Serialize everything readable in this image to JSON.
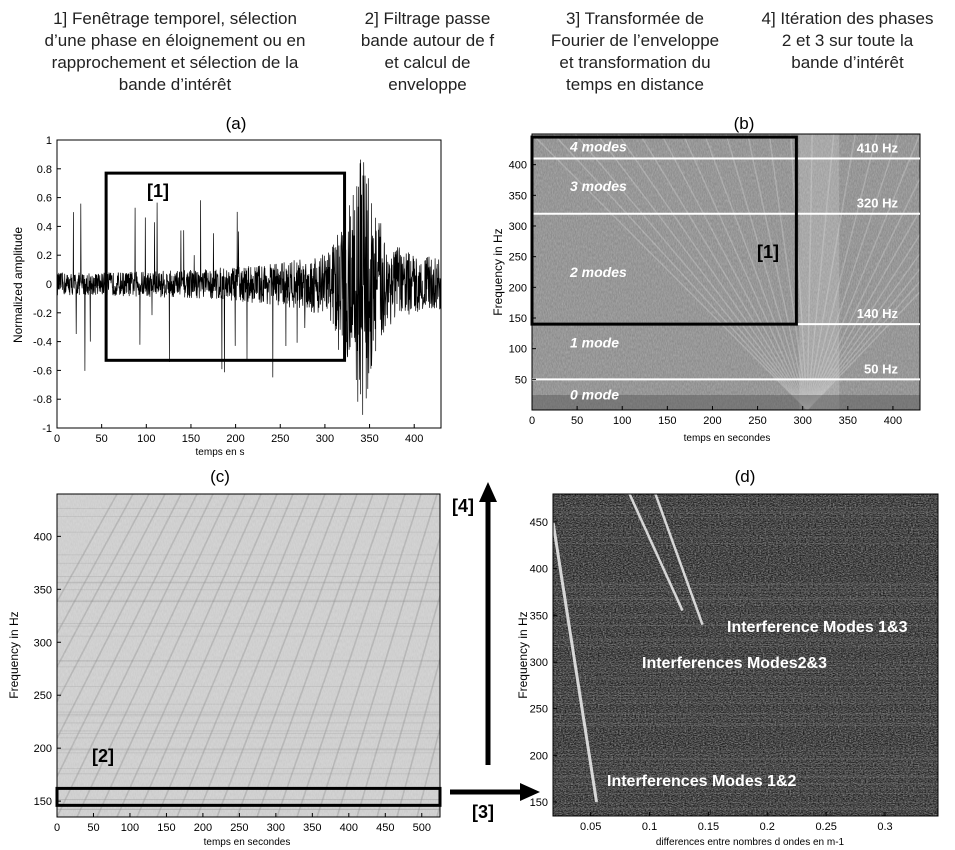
{
  "steps": [
    {
      "lines": [
        "1] Fenêtrage temporel, sélection",
        "d’une phase en éloignement ou en",
        "rapprochement et sélection de la",
        "bande d’intérêt"
      ]
    },
    {
      "lines": [
        "2] Filtrage passe",
        "bande autour de f",
        "et calcul de",
        "enveloppe"
      ]
    },
    {
      "lines": [
        "3] Transformée de",
        "Fourier de l’enveloppe",
        "et transformation du",
        "temps en distance"
      ]
    },
    {
      "lines": [
        "4] Itération des phases",
        "2 et 3 sur toute la",
        "bande d’intérêt"
      ]
    }
  ],
  "panel_labels": [
    "(a)",
    "(b)",
    "(c)",
    "(d)"
  ],
  "annotations": {
    "box1_a": "[1]",
    "box1_b": "[1]",
    "box2": "[2]",
    "arrow3": "[3]",
    "arrow4": "[4]"
  },
  "chart_data": [
    {
      "id": "a",
      "type": "line",
      "xlabel": "temps en s",
      "ylabel": "Normalized amplitude",
      "xlim": [
        0,
        430
      ],
      "ylim": [
        -1,
        1
      ],
      "xticks": [
        0,
        50,
        100,
        150,
        200,
        250,
        300,
        350,
        400
      ],
      "yticks": [
        -1,
        -0.8,
        -0.6,
        -0.4,
        -0.2,
        0,
        0.2,
        0.4,
        0.6,
        0.8,
        1
      ],
      "series": [
        {
          "envelope": [
            [
              0,
              0.08
            ],
            [
              50,
              0.08
            ],
            [
              100,
              0.09
            ],
            [
              150,
              0.1
            ],
            [
              200,
              0.12
            ],
            [
              250,
              0.15
            ],
            [
              300,
              0.22
            ],
            [
              320,
              0.4
            ],
            [
              335,
              0.8
            ],
            [
              345,
              0.95
            ],
            [
              355,
              0.55
            ],
            [
              370,
              0.3
            ],
            [
              400,
              0.2
            ],
            [
              430,
              0.18
            ]
          ]
        }
      ],
      "selection_box": {
        "x": [
          55,
          322
        ],
        "y": [
          -0.53,
          0.77
        ]
      }
    },
    {
      "id": "b",
      "type": "heatmap",
      "xlabel": "temps en secondes",
      "ylabel": "Frequency in Hz",
      "xlim": [
        0,
        430
      ],
      "ylim": [
        0,
        450
      ],
      "xticks": [
        0,
        50,
        100,
        150,
        200,
        250,
        300,
        350,
        400
      ],
      "yticks": [
        50,
        100,
        150,
        200,
        250,
        300,
        350,
        400
      ],
      "mode_bands": [
        {
          "label": "4 modes",
          "y": 430
        },
        {
          "label": "3 modes",
          "y": 365
        },
        {
          "label": "2 modes",
          "y": 225
        },
        {
          "label": "1 mode",
          "y": 110
        },
        {
          "label": "0 mode",
          "y": 25
        }
      ],
      "cutoffs": [
        {
          "label": "410 Hz",
          "y": 410
        },
        {
          "label": "320 Hz",
          "y": 320
        },
        {
          "label": "140 Hz",
          "y": 140
        },
        {
          "label": "50 Hz",
          "y": 50
        }
      ],
      "selection_box": {
        "x": [
          0,
          293
        ],
        "y": [
          140,
          445
        ]
      }
    },
    {
      "id": "c",
      "type": "heatmap",
      "xlabel": "temps en secondes",
      "ylabel": "Frequency in Hz",
      "xlim": [
        0,
        525
      ],
      "ylim": [
        135,
        440
      ],
      "xticks": [
        0,
        50,
        100,
        150,
        200,
        250,
        300,
        350,
        400,
        450,
        500
      ],
      "yticks": [
        150,
        200,
        250,
        300,
        350,
        400
      ],
      "selection_box": {
        "x": [
          0,
          525
        ],
        "y": [
          146,
          162
        ]
      }
    },
    {
      "id": "d",
      "type": "heatmap",
      "xlabel": "differences entre nombres d ondes en m-1",
      "ylabel": "Frequency in Hz",
      "xlim": [
        0.018,
        0.345
      ],
      "ylim": [
        135,
        480
      ],
      "xticks": [
        0.05,
        0.1,
        0.15,
        0.2,
        0.25,
        0.3
      ],
      "ytick_labels": [
        "150",
        "200",
        "250",
        "300",
        "350",
        "400",
        "450"
      ],
      "interference_lines": [
        {
          "label": "Interferences Modes 1&2"
        },
        {
          "label": "Interferences Modes2&3"
        },
        {
          "label": "Interference Modes 1&3"
        }
      ]
    }
  ]
}
